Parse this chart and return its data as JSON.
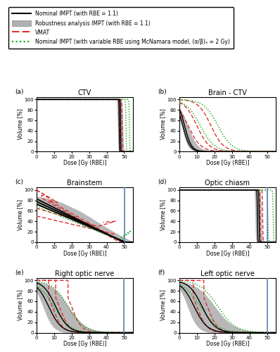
{
  "legend": {
    "nominal_impt": "Nominal IMPT (with RBE = 1.1)",
    "robustness": "Robustness analysis IMPT (with RBE = 1.1)",
    "vmat": "VMAT",
    "mcnamara": "Nominal IMPT (with variable RBE using McNamara model, (α/β)ₓ = 2 Gy)"
  },
  "colors": {
    "black": "#000000",
    "red": "#e03030",
    "green": "#00aa00",
    "gray_fill": "#b0b0b0",
    "blue_constraint": "#6688bb"
  }
}
